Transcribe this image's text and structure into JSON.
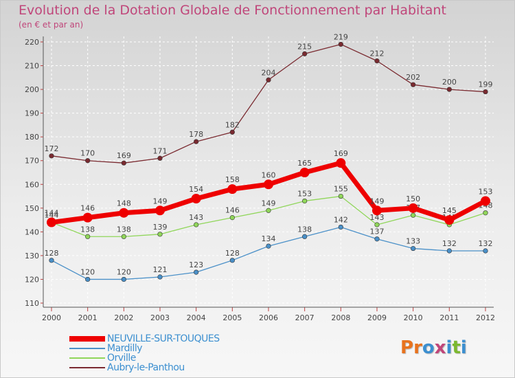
{
  "title": "Evolution de la Dotation Globale de Fonctionnement par Habitant",
  "subtitle": "(en € et par an)",
  "logo": {
    "text": "Proxiti",
    "colors": [
      "#e8731e",
      "#e8731e",
      "#3c8fd0",
      "#c0467a",
      "#3c8fd0",
      "#7cb82f",
      "#3c8fd0"
    ]
  },
  "chart_data": {
    "type": "line",
    "x": [
      "2000",
      "2001",
      "2002",
      "2003",
      "2004",
      "2005",
      "2006",
      "2007",
      "2008",
      "2009",
      "2010",
      "2011",
      "2012"
    ],
    "ylim": [
      110,
      220
    ],
    "yticks": [
      110,
      120,
      130,
      140,
      150,
      160,
      170,
      180,
      190,
      200,
      210,
      220
    ],
    "grid": true,
    "legend_position": "bottom-left",
    "series": [
      {
        "name": "NEUVILLE-SUR-TOUQUES",
        "color": "#ee0000",
        "values": [
          144,
          146,
          148,
          149,
          154,
          158,
          160,
          165,
          169,
          149,
          150,
          145,
          153
        ]
      },
      {
        "name": "Mardilly",
        "color": "#4a90c8",
        "values": [
          128,
          120,
          120,
          121,
          123,
          128,
          134,
          138,
          142,
          137,
          133,
          132,
          132
        ]
      },
      {
        "name": "Orville",
        "color": "#90d65a",
        "values": [
          144,
          138,
          138,
          139,
          143,
          146,
          149,
          153,
          155,
          143,
          147,
          143,
          148
        ]
      },
      {
        "name": "Aubry-le-Panthou",
        "color": "#7a2a30",
        "values": [
          172,
          170,
          169,
          171,
          178,
          182,
          204,
          215,
          219,
          212,
          202,
          200,
          199
        ]
      }
    ]
  }
}
